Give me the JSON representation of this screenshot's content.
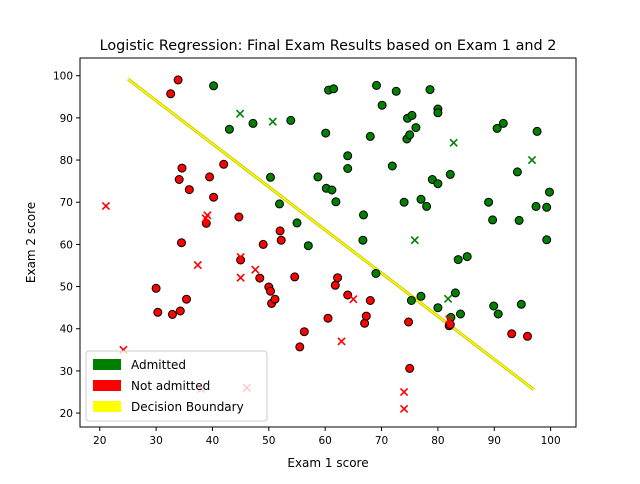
{
  "chart_data": {
    "type": "scatter",
    "title": "Logistic Regression: Final Exam Results based on Exam 1 and 2",
    "xlabel": "Exam 1 score",
    "ylabel": "Exam 2 score",
    "xlim": [
      16.5,
      104.5
    ],
    "ylim": [
      16.7,
      104.2
    ],
    "xticks": [
      20,
      30,
      40,
      50,
      60,
      70,
      80,
      90,
      100
    ],
    "yticks": [
      20,
      30,
      40,
      50,
      60,
      70,
      80,
      90,
      100
    ],
    "grid": false,
    "legend_position": "lower-left",
    "legend": [
      {
        "label": "Admitted",
        "color": "#008000"
      },
      {
        "label": "Not admitted",
        "color": "#ff0000"
      },
      {
        "label": "Decision Boundary",
        "color": "#ffff00"
      }
    ],
    "decision_boundary": {
      "color": "#ffff00",
      "edge_color": "#bfbf00",
      "points": [
        [
          25.0,
          99.2
        ],
        [
          97.0,
          25.6
        ]
      ]
    },
    "series": [
      {
        "name": "Admitted",
        "marker": "circle",
        "color": "#008000",
        "points": [
          [
            40.2,
            97.6
          ],
          [
            43.0,
            87.3
          ],
          [
            47.2,
            88.7
          ],
          [
            50.3,
            75.9
          ],
          [
            51.9,
            69.6
          ],
          [
            53.9,
            89.4
          ],
          [
            55.0,
            65.1
          ],
          [
            57.0,
            59.7
          ],
          [
            58.7,
            76.0
          ],
          [
            60.1,
            86.4
          ],
          [
            60.2,
            73.3
          ],
          [
            60.6,
            96.6
          ],
          [
            61.2,
            72.9
          ],
          [
            61.5,
            96.9
          ],
          [
            61.9,
            70.1
          ],
          [
            64.0,
            78.0
          ],
          [
            64.0,
            81.0
          ],
          [
            66.8,
            67.0
          ],
          [
            66.7,
            61.0
          ],
          [
            68.0,
            85.6
          ],
          [
            69.0,
            53.1
          ],
          [
            69.1,
            97.7
          ],
          [
            70.1,
            93.0
          ],
          [
            71.9,
            78.6
          ],
          [
            72.6,
            96.3
          ],
          [
            74.0,
            70.0
          ],
          [
            74.5,
            85.0
          ],
          [
            74.6,
            89.9
          ],
          [
            75.0,
            86.0
          ],
          [
            75.3,
            46.7
          ],
          [
            75.4,
            90.6
          ],
          [
            76.1,
            87.7
          ],
          [
            77.0,
            47.7
          ],
          [
            77.0,
            70.7
          ],
          [
            78.0,
            69.0
          ],
          [
            78.6,
            96.7
          ],
          [
            79.0,
            75.4
          ],
          [
            80.0,
            74.4
          ],
          [
            80.0,
            92.1
          ],
          [
            80.0,
            91.2
          ],
          [
            80.0,
            45.0
          ],
          [
            82.2,
            76.6
          ],
          [
            82.3,
            42.7
          ],
          [
            83.1,
            48.5
          ],
          [
            83.6,
            56.4
          ],
          [
            84.0,
            43.5
          ],
          [
            85.2,
            57.1
          ],
          [
            89.0,
            70.0
          ],
          [
            89.7,
            65.8
          ],
          [
            89.9,
            45.4
          ],
          [
            90.5,
            87.5
          ],
          [
            90.7,
            43.5
          ],
          [
            91.6,
            88.7
          ],
          [
            94.1,
            77.2
          ],
          [
            94.4,
            65.7
          ],
          [
            94.8,
            45.8
          ],
          [
            97.4,
            69.0
          ],
          [
            97.6,
            86.8
          ],
          [
            99.3,
            68.8
          ],
          [
            99.3,
            61.1
          ],
          [
            99.8,
            72.4
          ]
        ]
      },
      {
        "name": "Not admitted",
        "marker": "circle",
        "color": "#ff0000",
        "points": [
          [
            30.0,
            49.6
          ],
          [
            30.3,
            43.9
          ],
          [
            32.6,
            95.7
          ],
          [
            32.9,
            43.4
          ],
          [
            33.9,
            99.0
          ],
          [
            34.1,
            75.4
          ],
          [
            34.3,
            44.2
          ],
          [
            34.5,
            60.4
          ],
          [
            34.6,
            78.1
          ],
          [
            35.4,
            47.0
          ],
          [
            35.9,
            73.0
          ],
          [
            38.9,
            65.0
          ],
          [
            39.5,
            76.0
          ],
          [
            40.2,
            71.2
          ],
          [
            42.0,
            79.0
          ],
          [
            44.7,
            66.5
          ],
          [
            45.0,
            56.3
          ],
          [
            48.4,
            52.0
          ],
          [
            49.0,
            60.0
          ],
          [
            50.0,
            49.9
          ],
          [
            50.3,
            48.9
          ],
          [
            50.5,
            46.0
          ],
          [
            51.1,
            47.0
          ],
          [
            52.0,
            63.2
          ],
          [
            52.2,
            61.0
          ],
          [
            54.6,
            52.3
          ],
          [
            55.5,
            35.7
          ],
          [
            56.3,
            39.3
          ],
          [
            60.5,
            42.5
          ],
          [
            61.8,
            50.3
          ],
          [
            62.2,
            52.1
          ],
          [
            64.0,
            48.0
          ],
          [
            67.0,
            41.3
          ],
          [
            67.3,
            43.0
          ],
          [
            68.0,
            46.7
          ],
          [
            74.8,
            41.6
          ],
          [
            75.0,
            30.6
          ],
          [
            82.0,
            40.7
          ],
          [
            82.2,
            41.0
          ],
          [
            93.1,
            38.8
          ],
          [
            95.9,
            38.2
          ]
        ]
      },
      {
        "name": "Admitted",
        "marker": "x",
        "color": "#008000",
        "points": [
          [
            44.9,
            91.0
          ],
          [
            50.7,
            89.1
          ],
          [
            75.9,
            61.0
          ],
          [
            81.8,
            47.1
          ],
          [
            82.8,
            84.1
          ],
          [
            96.7,
            80.0
          ]
        ]
      },
      {
        "name": "Not admitted",
        "marker": "x",
        "color": "#ff0000",
        "points": [
          [
            21.1,
            69.1
          ],
          [
            24.2,
            35.0
          ],
          [
            37.4,
            55.1
          ],
          [
            38.0,
            25.7
          ],
          [
            38.8,
            66.2
          ],
          [
            39.1,
            66.9
          ],
          [
            45.0,
            52.1
          ],
          [
            45.0,
            57.0
          ],
          [
            46.1,
            26.0
          ],
          [
            47.6,
            54.0
          ],
          [
            62.9,
            37.0
          ],
          [
            65.0,
            47.0
          ],
          [
            74.0,
            25.0
          ],
          [
            74.0,
            21.0
          ],
          [
            82.0,
            42.2
          ]
        ]
      }
    ]
  }
}
